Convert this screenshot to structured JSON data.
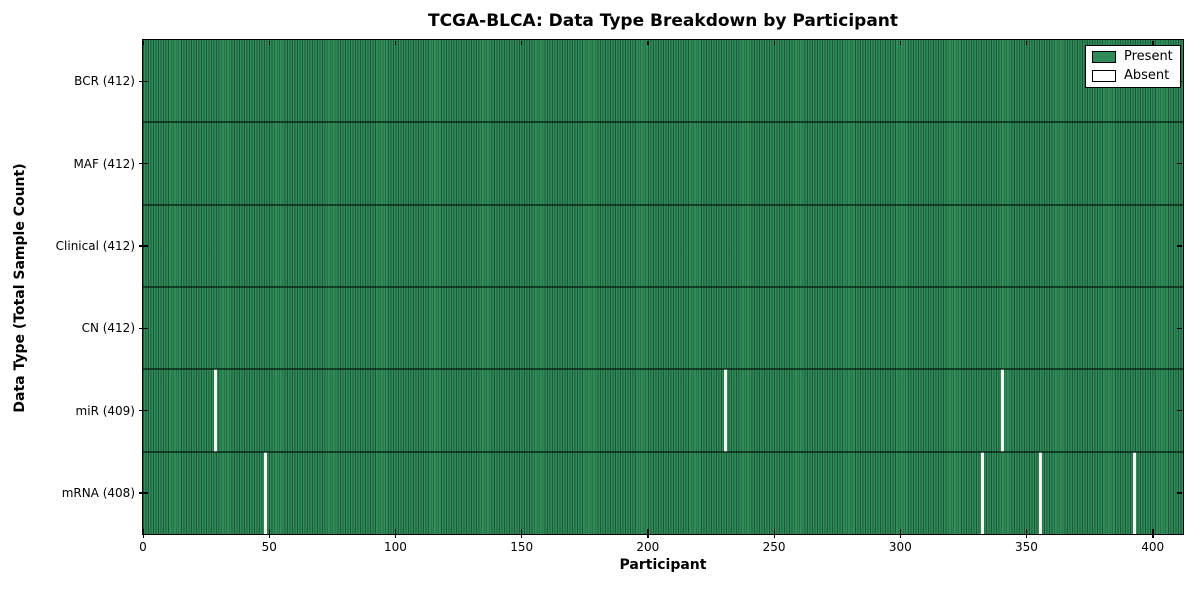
{
  "chart_data": {
    "type": "heatmap",
    "title": "TCGA-BLCA: Data Type Breakdown by Participant",
    "xlabel": "Participant",
    "ylabel": "Data Type (Total Sample Count)",
    "xlim": [
      0,
      412
    ],
    "x_ticks": [
      0,
      50,
      100,
      150,
      200,
      250,
      300,
      350,
      400
    ],
    "n_participants": 412,
    "grid": false,
    "legend_position": "upper right",
    "rows": [
      {
        "label": "BCR",
        "display": "BCR (412)",
        "total": 412,
        "absent_participants": []
      },
      {
        "label": "MAF",
        "display": "MAF (412)",
        "total": 412,
        "absent_participants": []
      },
      {
        "label": "Clinical",
        "display": "Clinical (412)",
        "total": 412,
        "absent_participants": []
      },
      {
        "label": "CN",
        "display": "CN (412)",
        "total": 412,
        "absent_participants": []
      },
      {
        "label": "miR",
        "display": "miR (409)",
        "total": 409,
        "absent_participants": [
          28,
          230,
          340
        ]
      },
      {
        "label": "mRNA",
        "display": "mRNA (408)",
        "total": 408,
        "absent_participants": [
          48,
          332,
          355,
          392
        ]
      }
    ],
    "legend": [
      {
        "label": "Present",
        "color": "#2e8b57"
      },
      {
        "label": "Absent",
        "color": "#ffffff"
      }
    ],
    "colors": {
      "present": "#2e8b57",
      "absent": "#ffffff",
      "column_edge": "#14502f",
      "row_separator": "#0d2d1b",
      "frame": "#000000",
      "background": "#ffffff",
      "text": "#000000"
    }
  }
}
